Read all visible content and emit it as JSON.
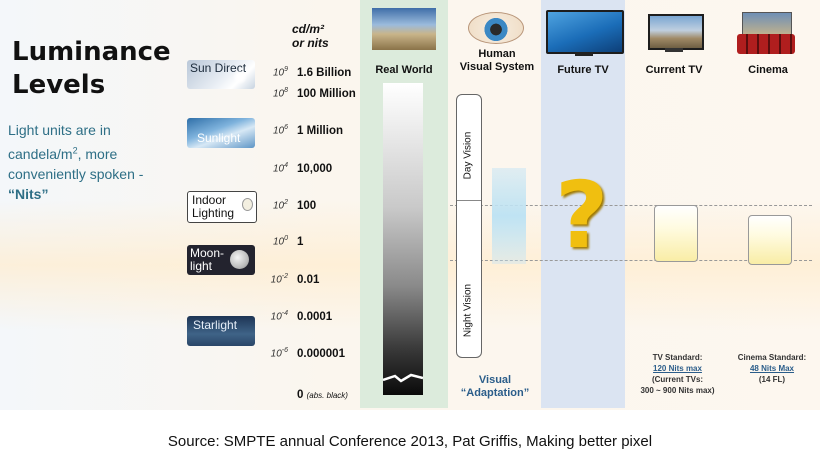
{
  "title": "Luminance Levels",
  "description": {
    "line1": "Light units are in",
    "line2_prefix": "candela/m",
    "line2_sup": "2",
    "line2_suffix": ", more",
    "line3": "conveniently spoken -",
    "line4": "“Nits”"
  },
  "unit_header": {
    "line1": "cd/m²",
    "line2": "or nits"
  },
  "scale": [
    {
      "exp_base": "10",
      "exp_pow": "9",
      "value": "1.6 Billion"
    },
    {
      "exp_base": "10",
      "exp_pow": "8",
      "value": "100 Million"
    },
    {
      "exp_base": "10",
      "exp_pow": "6",
      "value": "1 Million"
    },
    {
      "exp_base": "10",
      "exp_pow": "4",
      "value": "10,000"
    },
    {
      "exp_base": "10",
      "exp_pow": "2",
      "value": "100"
    },
    {
      "exp_base": "10",
      "exp_pow": "0",
      "value": "1"
    },
    {
      "exp_base": "10",
      "exp_pow": "-2",
      "value": "0.01"
    },
    {
      "exp_base": "10",
      "exp_pow": "-4",
      "value": "0.0001"
    },
    {
      "exp_base": "10",
      "exp_pow": "-6",
      "value": "0.000001"
    }
  ],
  "zero_label": {
    "value": "0",
    "note": "(abs. black)"
  },
  "light_sources": [
    {
      "label": "Sun Direct"
    },
    {
      "label": "Sunlight"
    },
    {
      "label_line1": "Indoor",
      "label_line2": "Lighting"
    },
    {
      "label_line1": "Moon-",
      "label_line2": "light"
    },
    {
      "label": "Starlight"
    }
  ],
  "columns": {
    "real_world": "Real World",
    "human_line1": "Human",
    "human_line2": "Visual System",
    "future_tv": "Future TV",
    "current_tv": "Current TV",
    "cinema": "Cinema"
  },
  "vision": {
    "day": "Day Vision",
    "night": "Night Vision",
    "adaptation_line1": "Visual",
    "adaptation_line2": "“Adaptation”"
  },
  "question_mark": "?",
  "tv_note": {
    "line1": "TV Standard:",
    "line2": "120 Nits max",
    "line3": "(Current TVs:",
    "line4": "300 ~ 900 Nits max)"
  },
  "cinema_note": {
    "line1": "Cinema Standard:",
    "line2": "48 Nits Max",
    "line3": "(14 FL)"
  },
  "source": "Source: SMPTE annual Conference 2013, Pat Griffis, Making better pixel",
  "colors": {
    "real_world_band": "#dcebdc",
    "future_tv_band": "#dbe4f2",
    "title_text": "#111111",
    "description_text": "#2e6f86",
    "question_mark": "#f0bf10"
  }
}
